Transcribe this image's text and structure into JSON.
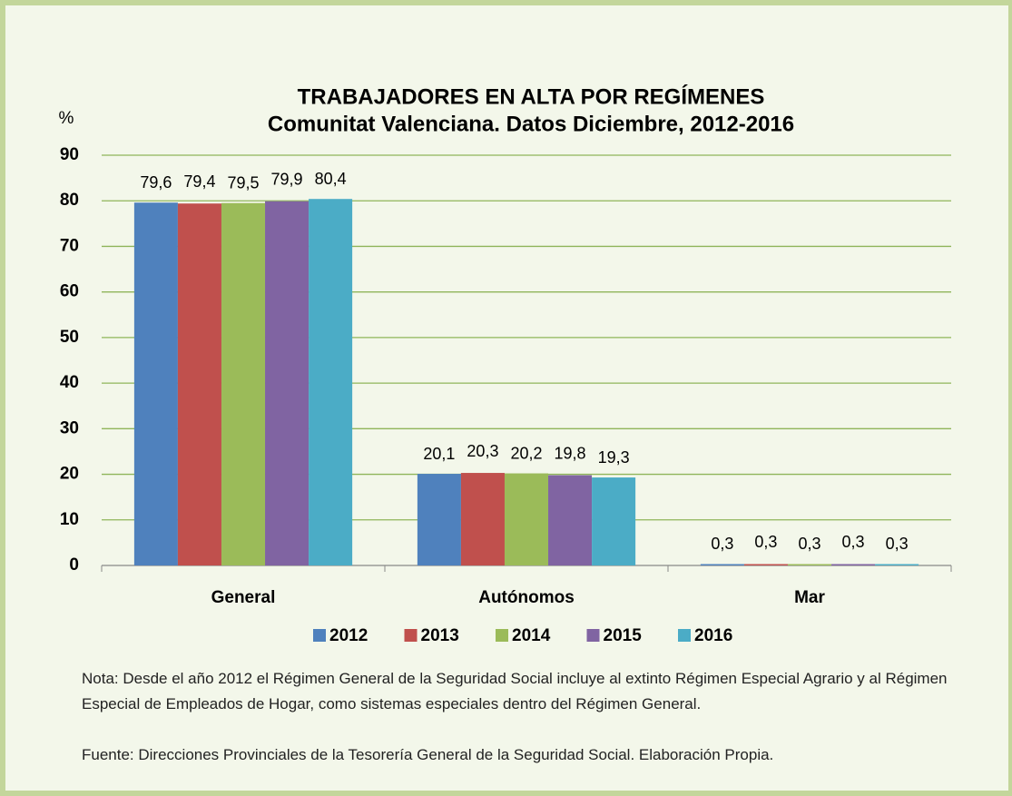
{
  "chart_data": {
    "type": "bar",
    "title": "TRABAJADORES EN ALTA POR REGÍMENES",
    "subtitle": "Comunitat Valenciana. Datos Diciembre, 2012-2016",
    "y_label": "%",
    "categories": [
      "General",
      "Autónomos",
      "Mar"
    ],
    "series": [
      {
        "name": "2012",
        "color": "#4f81bd",
        "values": [
          79.6,
          20.1,
          0.3
        ],
        "value_labels": [
          "79,6",
          "20,1",
          "0,3"
        ]
      },
      {
        "name": "2013",
        "color": "#c0504d",
        "values": [
          79.4,
          20.3,
          0.3
        ],
        "value_labels": [
          "79,4",
          "20,3",
          "0,3"
        ]
      },
      {
        "name": "2014",
        "color": "#9bbb59",
        "values": [
          79.5,
          20.2,
          0.3
        ],
        "value_labels": [
          "79,5",
          "20,2",
          "0,3"
        ]
      },
      {
        "name": "2015",
        "color": "#8064a2",
        "values": [
          79.9,
          19.8,
          0.3
        ],
        "value_labels": [
          "79,9",
          "19,8",
          "0,3"
        ]
      },
      {
        "name": "2016",
        "color": "#4bacc6",
        "values": [
          80.4,
          19.3,
          0.3
        ],
        "value_labels": [
          "80,4",
          "19,3",
          "0,3"
        ]
      }
    ],
    "ylim": [
      0,
      90
    ],
    "yticks": [
      0,
      10,
      20,
      30,
      40,
      50,
      60,
      70,
      80,
      90
    ],
    "grid": true,
    "legend": "bottom",
    "notes": [
      "Nota: Desde el año 2012 el Régimen General de la Seguridad Social incluye al extinto Régimen Especial Agrario y al Régimen Especial de Empleados de Hogar, como sistemas especiales dentro del Régimen General.",
      "Fuente: Direcciones Provinciales de la Tesorería General de la Seguridad Social. Elaboración Propia."
    ]
  }
}
